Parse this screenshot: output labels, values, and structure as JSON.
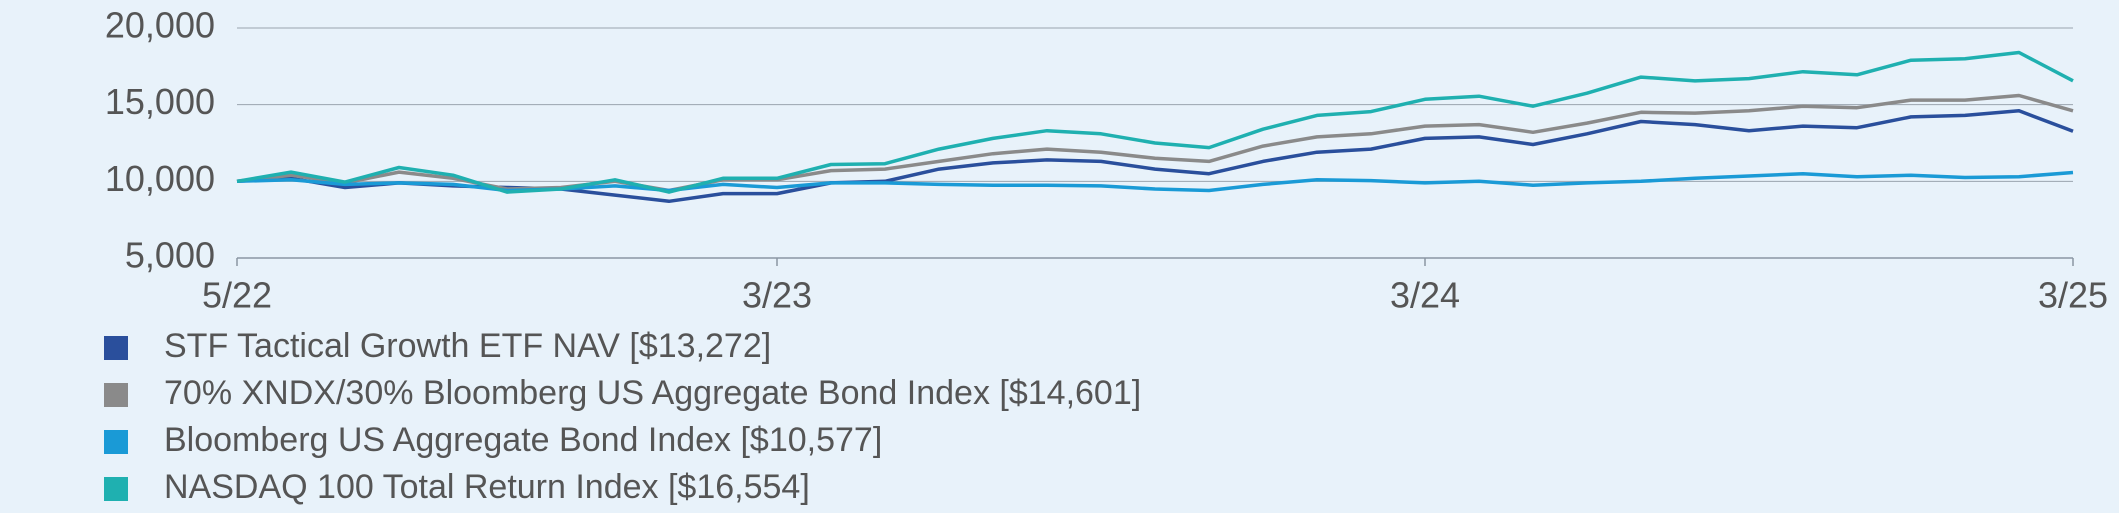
{
  "chart_data": {
    "type": "line",
    "categories": [
      "5/22",
      null,
      null,
      null,
      null,
      null,
      null,
      null,
      null,
      null,
      "3/23",
      null,
      null,
      null,
      null,
      null,
      null,
      null,
      null,
      null,
      null,
      null,
      "3/24",
      null,
      null,
      null,
      null,
      null,
      null,
      null,
      null,
      null,
      null,
      null,
      "3/25"
    ],
    "series": [
      {
        "name": "STF Tactical Growth ETF NAV [$13,272]",
        "color": "#2a4f9c",
        "values": [
          10000,
          10200,
          9600,
          9900,
          9700,
          9600,
          9500,
          9100,
          8700,
          9200,
          9200,
          9900,
          10000,
          10800,
          11200,
          11400,
          11300,
          10800,
          10500,
          11300,
          11900,
          12100,
          12800,
          12900,
          12400,
          13100,
          13900,
          13700,
          13300,
          13600,
          13500,
          14200,
          14300,
          14600,
          13272
        ]
      },
      {
        "name": "70% XNDX/30% Bloomberg US Aggregate Bond Index [$14,601]",
        "color": "#8a8a8a",
        "values": [
          10000,
          10400,
          9900,
          10600,
          10200,
          9500,
          9600,
          10000,
          9400,
          10100,
          10100,
          10700,
          10800,
          11300,
          11800,
          12100,
          11900,
          11500,
          11300,
          12300,
          12900,
          13100,
          13600,
          13700,
          13200,
          13800,
          14500,
          14450,
          14600,
          14900,
          14800,
          15300,
          15300,
          15600,
          14601
        ]
      },
      {
        "name": "Bloomberg US Aggregate Bond Index [$10,577]",
        "color": "#1a9ad6",
        "values": [
          10000,
          10100,
          9800,
          9900,
          9800,
          9400,
          9500,
          9700,
          9400,
          9800,
          9600,
          9900,
          9900,
          9800,
          9750,
          9750,
          9700,
          9500,
          9400,
          9800,
          10100,
          10050,
          9900,
          10000,
          9750,
          9900,
          10000,
          10200,
          10350,
          10500,
          10300,
          10400,
          10250,
          10300,
          10577
        ]
      },
      {
        "name": "NASDAQ 100 Total Return Index [$16,554]",
        "color": "#1fb0b0",
        "values": [
          10000,
          10600,
          9950,
          10900,
          10400,
          9300,
          9500,
          10100,
          9300,
          10200,
          10200,
          11100,
          11150,
          12100,
          12800,
          13300,
          13100,
          12500,
          12200,
          13400,
          14300,
          14550,
          15350,
          15550,
          14900,
          15750,
          16800,
          16550,
          16700,
          17150,
          16950,
          17900,
          18000,
          18400,
          16554
        ]
      }
    ],
    "ylim": [
      5000,
      20000
    ],
    "yticks": [
      {
        "value": 5000,
        "label": "5,000"
      },
      {
        "value": 10000,
        "label": "10,000"
      },
      {
        "value": 15000,
        "label": "15,000"
      },
      {
        "value": 20000,
        "label": "20,000"
      }
    ],
    "grid": true
  }
}
